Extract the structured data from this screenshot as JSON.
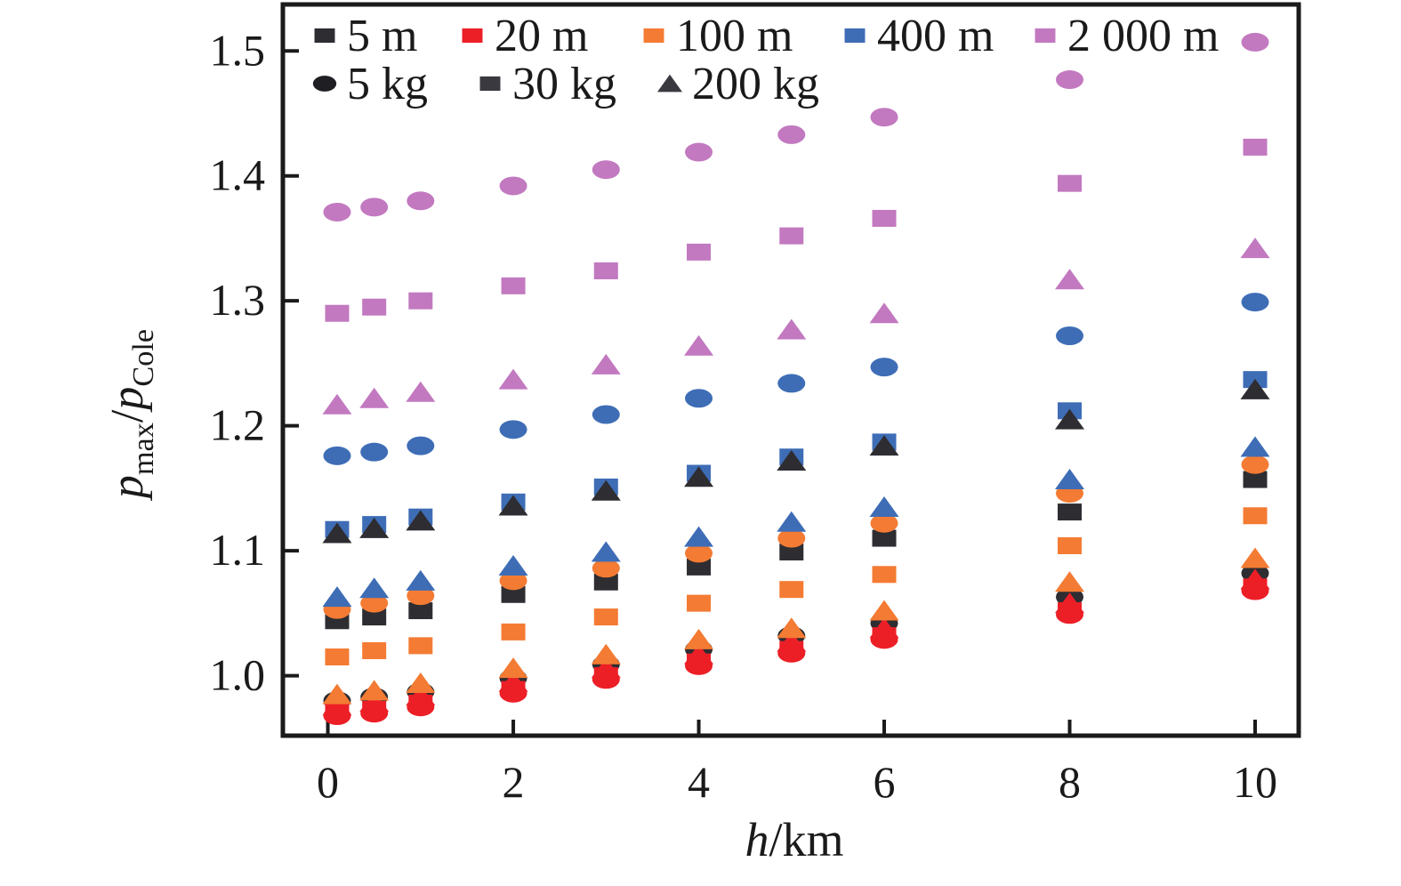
{
  "chart_data": {
    "type": "scatter",
    "title": "",
    "xlabel": "h/km",
    "ylabel": "p_max/p_Cole",
    "x_label_parts": [
      {
        "text": "h",
        "style": "italic"
      },
      {
        "text": "/km",
        "style": "normal"
      }
    ],
    "y_label_parts": [
      {
        "text": "p",
        "style": "italic"
      },
      {
        "text": "max",
        "script": "sub"
      },
      {
        "text": "/",
        "style": "normal"
      },
      {
        "text": "p",
        "style": "italic"
      },
      {
        "text": "Cole",
        "script": "sub"
      }
    ],
    "xlim": [
      -0.485,
      10.47
    ],
    "ylim": [
      0.952,
      1.5372
    ],
    "xticks": [
      0,
      2,
      4,
      6,
      8,
      10
    ],
    "yticks": [
      1.0,
      1.1,
      1.2,
      1.3,
      1.4,
      1.5
    ],
    "xtick_labels": [
      "0",
      "2",
      "4",
      "6",
      "8",
      "10"
    ],
    "ytick_labels": [
      "1.0",
      "1.1",
      "1.2",
      "1.3",
      "1.4",
      "1.5"
    ],
    "grid": false,
    "legend_position": "top-left-inside",
    "x": [
      0.1,
      0.5,
      1,
      2,
      3,
      4,
      5,
      6,
      8,
      10
    ],
    "series": [
      {
        "name": "5 m, 5 kg",
        "distance": "5 m",
        "mass": "5 kg",
        "marker": "circle",
        "color": "#2e2d32",
        "values": [
          0.98,
          0.983,
          0.987,
          0.998,
          1.009,
          1.021,
          1.032,
          1.042,
          1.063,
          1.082
        ]
      },
      {
        "name": "20 m, 5 kg",
        "distance": "20 m",
        "mass": "5 kg",
        "marker": "circle",
        "color": "#ec1f27",
        "values": [
          0.968,
          0.97,
          0.975,
          0.986,
          0.997,
          1.008,
          1.018,
          1.029,
          1.049,
          1.068
        ]
      },
      {
        "name": "20 m, 30 kg",
        "distance": "20 m",
        "mass": "30 kg",
        "marker": "square",
        "color": "#ec1f27",
        "values": [
          0.971,
          0.973,
          0.978,
          0.989,
          1.0,
          1.011,
          1.021,
          1.032,
          1.052,
          1.071
        ]
      },
      {
        "name": "20 m, 200 kg",
        "distance": "20 m",
        "mass": "200 kg",
        "marker": "triangle",
        "color": "#ec1f27",
        "values": [
          0.976,
          0.979,
          0.984,
          0.995,
          1.006,
          1.017,
          1.027,
          1.038,
          1.058,
          1.077
        ]
      },
      {
        "name": "100 m, 200 kg",
        "distance": "100 m",
        "mass": "200 kg",
        "marker": "triangle",
        "color": "#f47b33",
        "values": [
          0.985,
          0.988,
          0.994,
          1.006,
          1.017,
          1.029,
          1.038,
          1.052,
          1.075,
          1.094
        ]
      },
      {
        "name": "5 m, 30 kg",
        "distance": "5 m",
        "mass": "30 kg",
        "marker": "square",
        "color": "#2e2d32",
        "values": [
          1.044,
          1.047,
          1.052,
          1.065,
          1.075,
          1.087,
          1.099,
          1.11,
          1.131,
          1.157
        ]
      },
      {
        "name": "100 m, 5 kg",
        "distance": "100 m",
        "mass": "5 kg",
        "marker": "circle",
        "color": "#f47b33",
        "values": [
          1.053,
          1.058,
          1.064,
          1.076,
          1.086,
          1.098,
          1.11,
          1.122,
          1.146,
          1.169
        ]
      },
      {
        "name": "400 m, 200 kg",
        "distance": "400 m",
        "mass": "200 kg",
        "marker": "triangle",
        "color": "#3e6db6",
        "values": [
          1.063,
          1.07,
          1.076,
          1.088,
          1.099,
          1.111,
          1.123,
          1.135,
          1.157,
          1.183
        ]
      },
      {
        "name": "100 m, 30 kg",
        "distance": "100 m",
        "mass": "30 kg",
        "marker": "square",
        "color": "#f47b33",
        "values": [
          1.015,
          1.02,
          1.024,
          1.035,
          1.047,
          1.058,
          1.069,
          1.081,
          1.104,
          1.128
        ]
      },
      {
        "name": "400 m, 30 kg",
        "distance": "400 m",
        "mass": "30 kg",
        "marker": "square",
        "color": "#3e6db6",
        "values": [
          1.117,
          1.121,
          1.127,
          1.139,
          1.151,
          1.162,
          1.175,
          1.187,
          1.212,
          1.237
        ]
      },
      {
        "name": "5 m, 200 kg",
        "distance": "5 m",
        "mass": "200 kg",
        "marker": "triangle",
        "color": "#2e2d32",
        "values": [
          1.114,
          1.118,
          1.124,
          1.136,
          1.148,
          1.159,
          1.172,
          1.184,
          1.205,
          1.229
        ]
      },
      {
        "name": "400 m, 5 kg",
        "distance": "400 m",
        "mass": "5 kg",
        "marker": "circle",
        "color": "#3e6db6",
        "values": [
          1.176,
          1.179,
          1.184,
          1.197,
          1.209,
          1.222,
          1.234,
          1.247,
          1.272,
          1.299
        ]
      },
      {
        "name": "2 000 m, 200 kg",
        "distance": "2 000 m",
        "mass": "200 kg",
        "marker": "triangle",
        "color": "#c279c0",
        "values": [
          1.217,
          1.222,
          1.227,
          1.237,
          1.249,
          1.264,
          1.277,
          1.29,
          1.317,
          1.342
        ]
      },
      {
        "name": "2 000 m, 30 kg",
        "distance": "2 000 m",
        "mass": "30 kg",
        "marker": "square",
        "color": "#c279c0",
        "values": [
          1.29,
          1.295,
          1.3,
          1.312,
          1.324,
          1.339,
          1.352,
          1.366,
          1.394,
          1.423
        ]
      },
      {
        "name": "2 000 m, 5 kg",
        "distance": "2 000 m",
        "mass": "5 kg",
        "marker": "circle",
        "color": "#c279c0",
        "values": [
          1.371,
          1.375,
          1.38,
          1.392,
          1.405,
          1.419,
          1.433,
          1.447,
          1.477,
          1.507
        ]
      }
    ]
  },
  "legend": {
    "rows": [
      [
        {
          "label": "5 m",
          "shape": "square",
          "color": "#2e2d32"
        },
        {
          "label": "20 m",
          "shape": "square",
          "color": "#ec1f27"
        },
        {
          "label": "100 m",
          "shape": "square",
          "color": "#f47b33"
        },
        {
          "label": "400 m",
          "shape": "square",
          "color": "#3e6db6"
        },
        {
          "label": "2 000 m",
          "shape": "square",
          "color": "#c279c0"
        }
      ],
      [
        {
          "label": "5 kg",
          "shape": "circle",
          "color": "#1f1f23"
        },
        {
          "label": "30 kg",
          "shape": "square",
          "color": "#3a3940"
        },
        {
          "label": "200 kg",
          "shape": "triangle",
          "color": "#3a3940"
        }
      ]
    ]
  },
  "colors": {
    "axis": "#1a1a1a",
    "text": "#1a1a1a",
    "background": "#ffffff"
  }
}
